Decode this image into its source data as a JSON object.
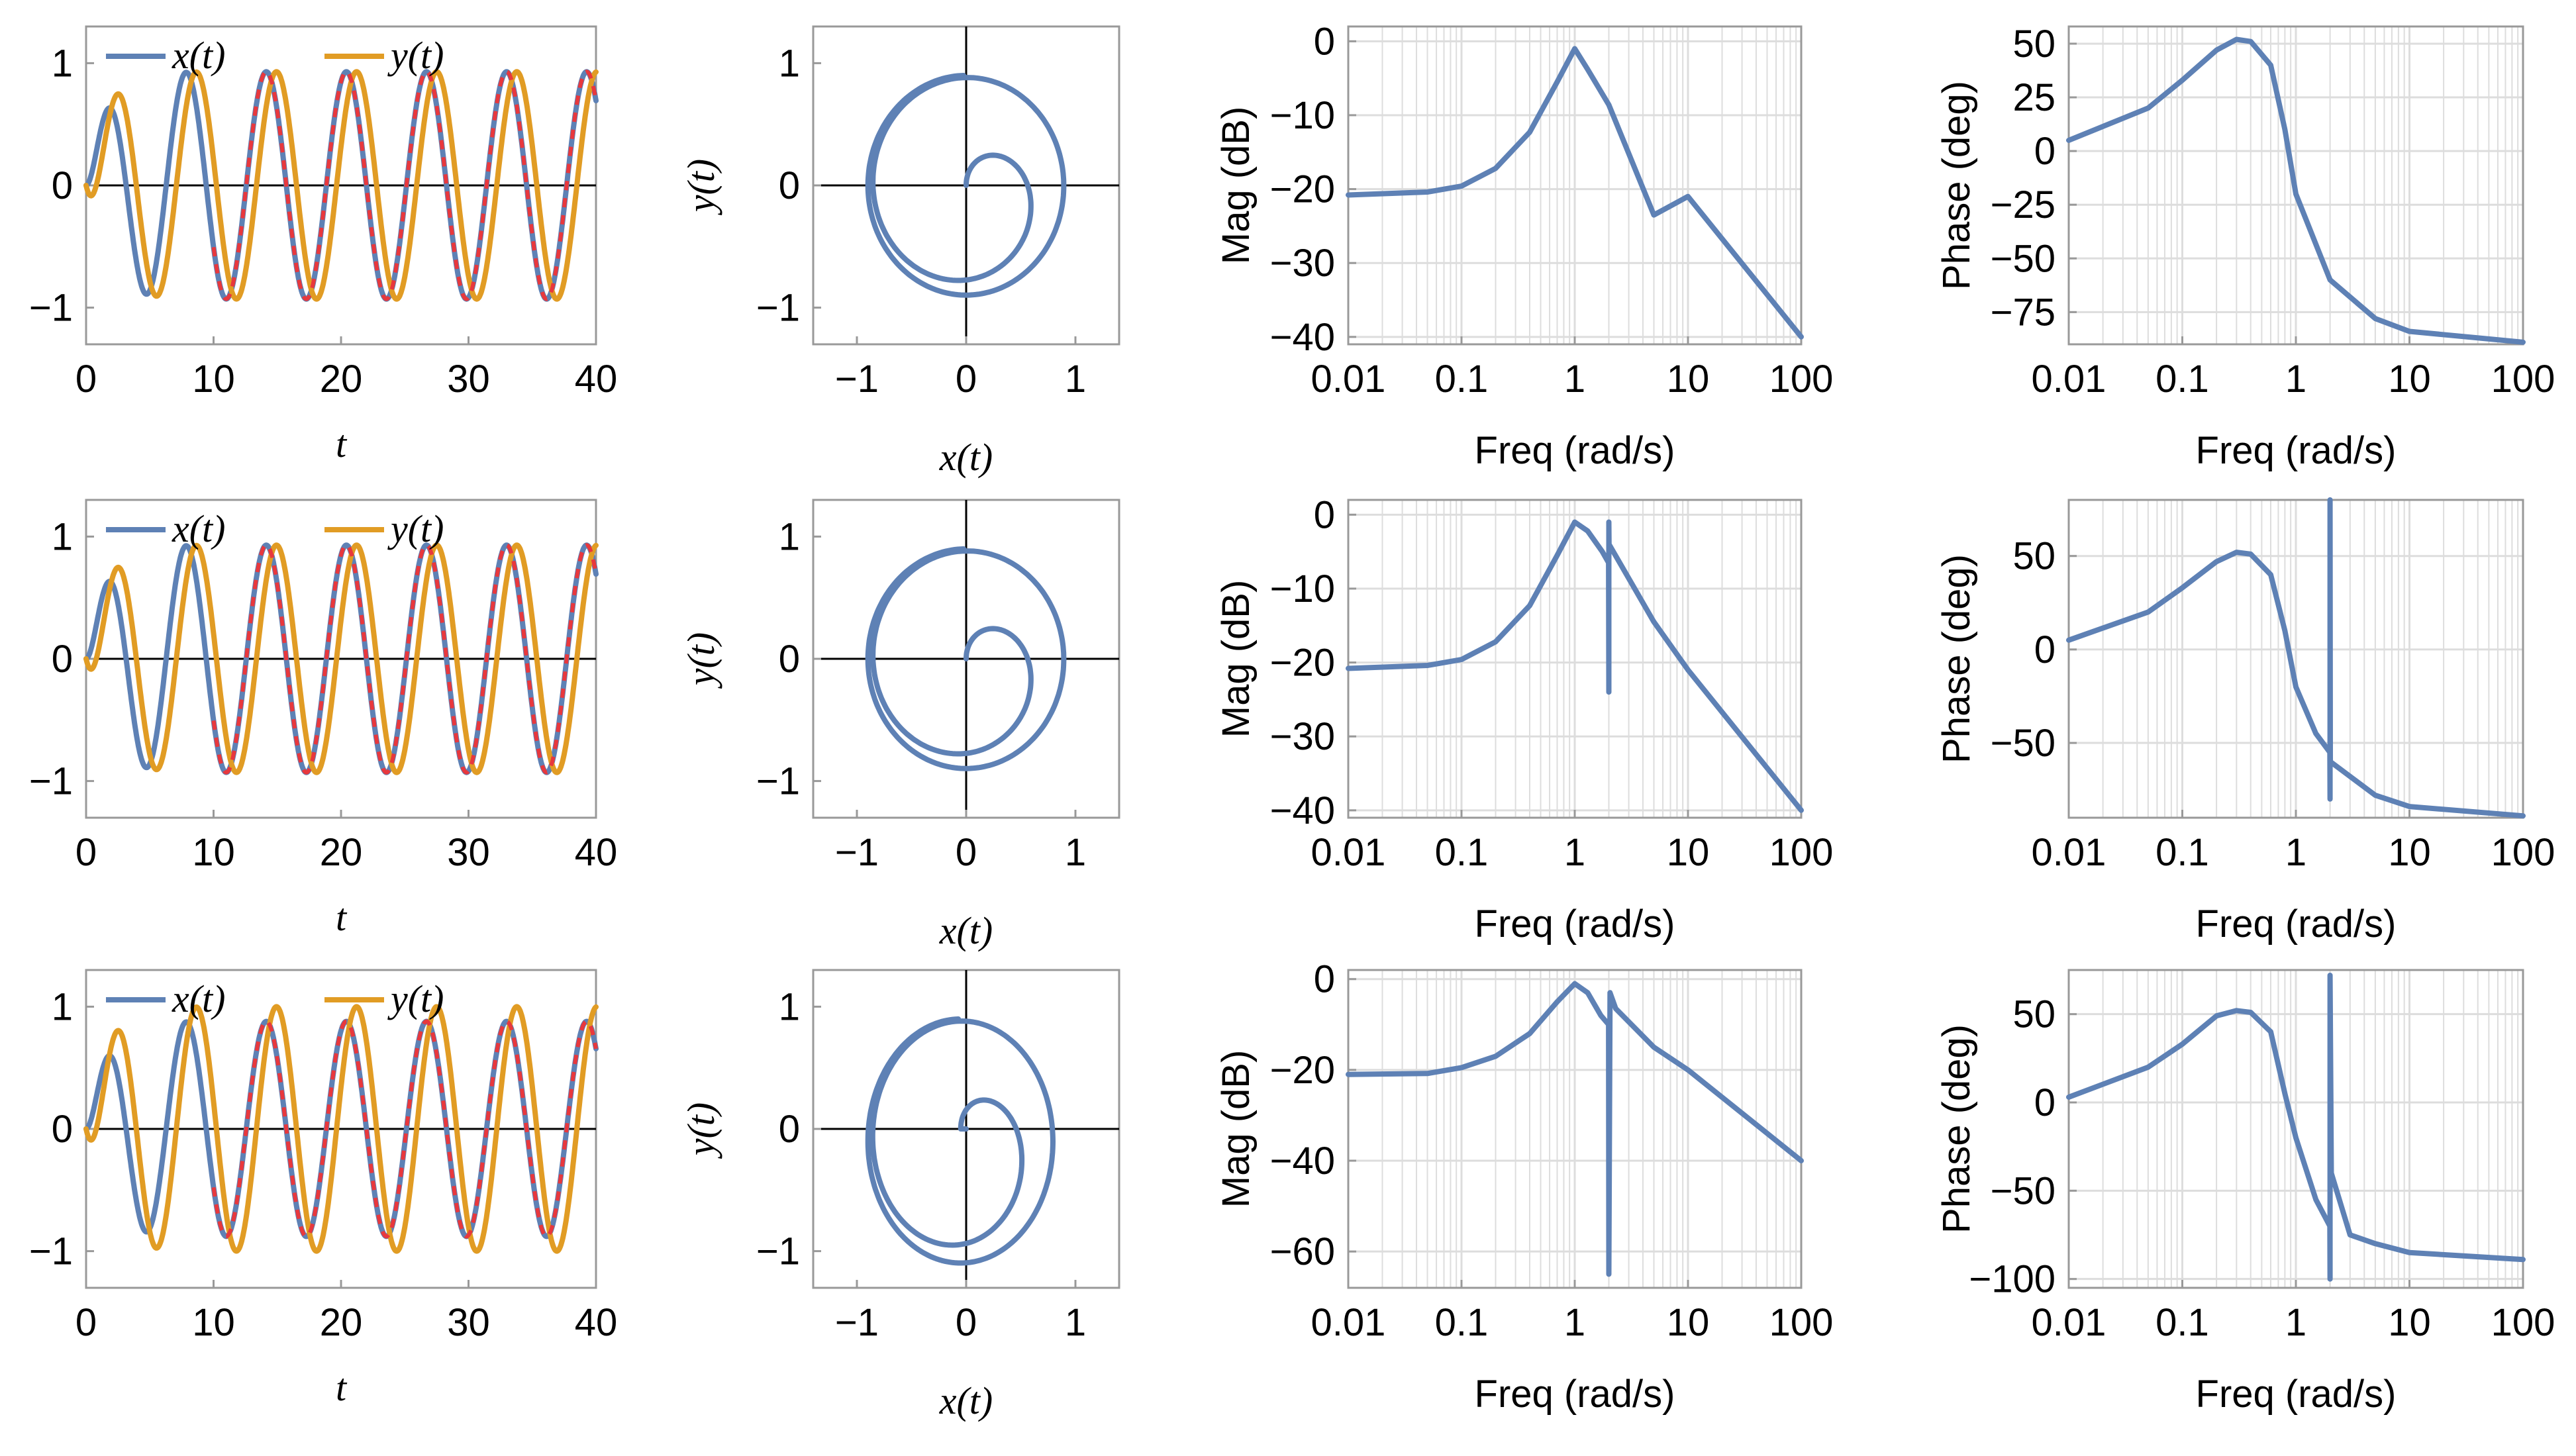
{
  "figure": {
    "rows": 3,
    "cols": 4
  },
  "colors": {
    "x": "#5e81b5",
    "y": "#e19c24",
    "ref": "#e8383d",
    "grid": "#dddddd"
  },
  "chart_data": [
    {
      "id": "t1",
      "type": "line",
      "row": 0,
      "col": 0,
      "xlabel": "t",
      "xlim": [
        0,
        40
      ],
      "ylim": [
        -1.3,
        1.3
      ],
      "xticks": [
        0,
        10,
        20,
        30,
        40
      ],
      "yticks": [
        -1,
        0,
        1
      ],
      "legend": [
        "x(t)",
        "y(t)"
      ],
      "legend_position": "top",
      "series": [
        {
          "name": "x(t)",
          "amp": 0.93,
          "omega": 1.0,
          "phase": 0
        },
        {
          "name": "y(t)",
          "amp": 0.93,
          "omega": 1.0,
          "phase": 1.571
        }
      ],
      "reference": {
        "name": "red-dashed",
        "from_t": 10
      }
    },
    {
      "id": "p1",
      "type": "line",
      "row": 0,
      "col": 1,
      "xlabel": "x(t)",
      "ylabel": "y(t)",
      "xlim": [
        -1.4,
        1.4
      ],
      "ylim": [
        -1.3,
        1.3
      ],
      "xticks": [
        -1,
        0,
        1
      ],
      "yticks": [
        -1,
        0,
        1
      ],
      "loop": {
        "cx": 0.0,
        "cy": 0.0,
        "rx": 0.9,
        "ry": 0.9
      }
    },
    {
      "id": "m1",
      "type": "line",
      "row": 0,
      "col": 2,
      "xscale": "log",
      "xlabel": "Freq (rad/s)",
      "ylabel": "Mag (dB)",
      "xlim": [
        0.01,
        100
      ],
      "ylim": [
        -41,
        2
      ],
      "xticks": [
        0.01,
        0.1,
        1,
        10,
        100
      ],
      "xtick_labels": [
        "0.01",
        "0.1",
        "1",
        "10",
        "100"
      ],
      "yticks": [
        -40,
        -30,
        -20,
        -10,
        0
      ],
      "points": [
        [
          0.01,
          -20.8
        ],
        [
          0.05,
          -20.4
        ],
        [
          0.1,
          -19.6
        ],
        [
          0.2,
          -17.2
        ],
        [
          0.4,
          -12.3
        ],
        [
          0.7,
          -5.5
        ],
        [
          1.0,
          -1.0
        ],
        [
          1.3,
          -3.8
        ],
        [
          2.0,
          -8.6
        ],
        [
          5,
          -23.5
        ],
        [
          10,
          -21.0
        ],
        [
          100,
          -40.0
        ]
      ]
    },
    {
      "id": "ph1",
      "type": "line",
      "row": 0,
      "col": 3,
      "xscale": "log",
      "xlabel": "Freq (rad/s)",
      "ylabel": "Phase (deg)",
      "xlim": [
        0.01,
        100
      ],
      "ylim": [
        -90,
        58
      ],
      "xticks": [
        0.01,
        0.1,
        1,
        10,
        100
      ],
      "xtick_labels": [
        "0.01",
        "0.1",
        "1",
        "10",
        "100"
      ],
      "yticks": [
        -75,
        -50,
        -25,
        0,
        25,
        50
      ],
      "points": [
        [
          0.01,
          5
        ],
        [
          0.05,
          20
        ],
        [
          0.1,
          33
        ],
        [
          0.2,
          47
        ],
        [
          0.3,
          52
        ],
        [
          0.4,
          51
        ],
        [
          0.6,
          40
        ],
        [
          0.8,
          10
        ],
        [
          1.0,
          -20
        ],
        [
          2,
          -60
        ],
        [
          5,
          -78
        ],
        [
          10,
          -84
        ],
        [
          100,
          -89
        ]
      ]
    },
    {
      "id": "t2",
      "type": "line",
      "row": 1,
      "col": 0,
      "xlabel": "t",
      "xlim": [
        0,
        40
      ],
      "ylim": [
        -1.3,
        1.3
      ],
      "xticks": [
        0,
        10,
        20,
        30,
        40
      ],
      "yticks": [
        -1,
        0,
        1
      ],
      "legend": [
        "x(t)",
        "y(t)"
      ],
      "legend_position": "top",
      "series": [
        {
          "name": "x(t)",
          "amp": 0.93,
          "omega": 1.0,
          "phase": 0
        },
        {
          "name": "y(t)",
          "amp": 0.93,
          "omega": 1.0,
          "phase": 1.571
        }
      ],
      "reference": {
        "name": "red-dashed",
        "from_t": 10
      }
    },
    {
      "id": "p2",
      "type": "line",
      "row": 1,
      "col": 1,
      "xlabel": "x(t)",
      "ylabel": "y(t)",
      "xlim": [
        -1.4,
        1.4
      ],
      "ylim": [
        -1.3,
        1.3
      ],
      "xticks": [
        -1,
        0,
        1
      ],
      "yticks": [
        -1,
        0,
        1
      ],
      "loop": {
        "cx": 0.0,
        "cy": 0.0,
        "rx": 0.9,
        "ry": 0.9
      }
    },
    {
      "id": "m2",
      "type": "line",
      "row": 1,
      "col": 2,
      "xscale": "log",
      "xlabel": "Freq (rad/s)",
      "ylabel": "Mag (dB)",
      "xlim": [
        0.01,
        100
      ],
      "ylim": [
        -41,
        2
      ],
      "xticks": [
        0.01,
        0.1,
        1,
        10,
        100
      ],
      "xtick_labels": [
        "0.01",
        "0.1",
        "1",
        "10",
        "100"
      ],
      "yticks": [
        -40,
        -30,
        -20,
        -10,
        0
      ],
      "points": [
        [
          0.01,
          -20.8
        ],
        [
          0.05,
          -20.4
        ],
        [
          0.1,
          -19.6
        ],
        [
          0.2,
          -17.2
        ],
        [
          0.4,
          -12.3
        ],
        [
          0.7,
          -5.5
        ],
        [
          1.0,
          -1.0
        ],
        [
          1.3,
          -2.2
        ],
        [
          1.75,
          -5.0
        ],
        [
          1.99,
          -6.5
        ],
        [
          2.0,
          -24
        ],
        [
          2.0,
          -1
        ],
        [
          2.01,
          -4.0
        ],
        [
          5,
          -14.5
        ],
        [
          10,
          -21.0
        ],
        [
          100,
          -40.0
        ]
      ]
    },
    {
      "id": "ph2",
      "type": "line",
      "row": 1,
      "col": 3,
      "xscale": "log",
      "xlabel": "Freq (rad/s)",
      "ylabel": "Phase (deg)",
      "xlim": [
        0.01,
        100
      ],
      "ylim": [
        -90,
        80
      ],
      "xticks": [
        0.01,
        0.1,
        1,
        10,
        100
      ],
      "xtick_labels": [
        "0.01",
        "0.1",
        "1",
        "10",
        "100"
      ],
      "yticks": [
        -50,
        0,
        50
      ],
      "points": [
        [
          0.01,
          5
        ],
        [
          0.05,
          20
        ],
        [
          0.1,
          33
        ],
        [
          0.2,
          47
        ],
        [
          0.3,
          52
        ],
        [
          0.4,
          51
        ],
        [
          0.6,
          40
        ],
        [
          0.8,
          10
        ],
        [
          1.0,
          -20
        ],
        [
          1.5,
          -45
        ],
        [
          1.99,
          -55
        ],
        [
          2.0,
          -80
        ],
        [
          2.0,
          80
        ],
        [
          2.01,
          -60
        ],
        [
          5,
          -78
        ],
        [
          10,
          -84
        ],
        [
          100,
          -89
        ]
      ]
    },
    {
      "id": "t3",
      "type": "line",
      "row": 2,
      "col": 0,
      "xlabel": "t",
      "xlim": [
        0,
        40
      ],
      "ylim": [
        -1.3,
        1.3
      ],
      "xticks": [
        0,
        10,
        20,
        30,
        40
      ],
      "yticks": [
        -1,
        0,
        1
      ],
      "legend": [
        "x(t)",
        "y(t)"
      ],
      "legend_position": "top",
      "series": [
        {
          "name": "x(t)",
          "amp": 0.88,
          "omega": 1.0,
          "phase": 0
        },
        {
          "name": "y(t)",
          "amp": 1.0,
          "omega": 1.0,
          "phase": 1.571
        }
      ],
      "reference": {
        "name": "red-dashed",
        "from_t": 10
      }
    },
    {
      "id": "p3",
      "type": "line",
      "row": 2,
      "col": 1,
      "xlabel": "x(t)",
      "ylabel": "y(t)",
      "xlim": [
        -1.4,
        1.4
      ],
      "ylim": [
        -1.3,
        1.3
      ],
      "xticks": [
        -1,
        0,
        1
      ],
      "yticks": [
        -1,
        0,
        1
      ],
      "loop": {
        "cx": -0.05,
        "cy": -0.1,
        "rx": 0.85,
        "ry": 1.0
      }
    },
    {
      "id": "m3",
      "type": "line",
      "row": 2,
      "col": 2,
      "xscale": "log",
      "xlabel": "Freq (rad/s)",
      "ylabel": "Mag (dB)",
      "xlim": [
        0.01,
        100
      ],
      "ylim": [
        -68,
        2
      ],
      "xticks": [
        0.01,
        0.1,
        1,
        10,
        100
      ],
      "xtick_labels": [
        "0.01",
        "0.1",
        "1",
        "10",
        "100"
      ],
      "yticks": [
        -60,
        -40,
        -20,
        0
      ],
      "points": [
        [
          0.01,
          -21
        ],
        [
          0.05,
          -20.8
        ],
        [
          0.1,
          -19.5
        ],
        [
          0.2,
          -17
        ],
        [
          0.4,
          -12
        ],
        [
          0.7,
          -5
        ],
        [
          1.0,
          -1
        ],
        [
          1.3,
          -3
        ],
        [
          1.7,
          -8
        ],
        [
          1.99,
          -10
        ],
        [
          2.0,
          -65
        ],
        [
          2.05,
          -3
        ],
        [
          2.3,
          -6.5
        ],
        [
          5,
          -15
        ],
        [
          10,
          -20
        ],
        [
          100,
          -40
        ]
      ]
    },
    {
      "id": "ph3",
      "type": "line",
      "row": 2,
      "col": 3,
      "xscale": "log",
      "xlabel": "Freq (rad/s)",
      "ylabel": "Phase (deg)",
      "xlim": [
        0.01,
        100
      ],
      "ylim": [
        -105,
        75
      ],
      "xticks": [
        0.01,
        0.1,
        1,
        10,
        100
      ],
      "xtick_labels": [
        "0.01",
        "0.1",
        "1",
        "10",
        "100"
      ],
      "yticks": [
        -100,
        -50,
        0,
        50
      ],
      "points": [
        [
          0.01,
          3
        ],
        [
          0.05,
          20
        ],
        [
          0.1,
          33
        ],
        [
          0.2,
          49
        ],
        [
          0.3,
          52
        ],
        [
          0.4,
          51
        ],
        [
          0.6,
          40
        ],
        [
          0.8,
          5
        ],
        [
          1.0,
          -20
        ],
        [
          1.5,
          -55
        ],
        [
          1.99,
          -70
        ],
        [
          2.0,
          -100
        ],
        [
          2.0,
          72
        ],
        [
          2.05,
          -40
        ],
        [
          3,
          -75
        ],
        [
          5,
          -80
        ],
        [
          10,
          -85
        ],
        [
          100,
          -89
        ]
      ]
    }
  ]
}
